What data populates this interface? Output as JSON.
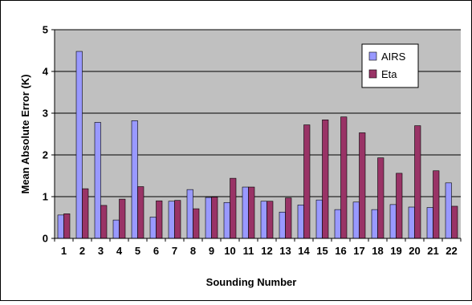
{
  "chart_data": {
    "type": "bar",
    "title": "",
    "xlabel": "Sounding Number",
    "ylabel": "Mean Absolute Error (K)",
    "ylim": [
      0,
      5
    ],
    "yticks": [
      "0",
      "1",
      "2",
      "3",
      "4",
      "5"
    ],
    "grid": true,
    "legend_position": "top-right",
    "categories": [
      "1",
      "2",
      "3",
      "4",
      "5",
      "6",
      "7",
      "8",
      "9",
      "10",
      "11",
      "12",
      "13",
      "14",
      "15",
      "16",
      "17",
      "18",
      "19",
      "20",
      "21",
      "22"
    ],
    "series": [
      {
        "name": "AIRS",
        "color": "#9999ff",
        "values": [
          0.56,
          4.48,
          2.78,
          0.44,
          2.82,
          0.51,
          0.89,
          1.17,
          0.98,
          0.86,
          1.23,
          0.89,
          0.63,
          0.8,
          0.92,
          0.69,
          0.87,
          0.69,
          0.81,
          0.75,
          0.74,
          1.33
        ]
      },
      {
        "name": "Eta",
        "color": "#993366",
        "values": [
          0.59,
          1.19,
          0.79,
          0.94,
          1.24,
          0.9,
          0.91,
          0.71,
          0.99,
          1.44,
          1.23,
          0.89,
          0.97,
          2.72,
          2.84,
          2.91,
          2.53,
          1.93,
          1.56,
          2.7,
          1.62,
          0.77
        ]
      }
    ],
    "plot_background": "#c0c0c0",
    "bar_outline": "#000000"
  }
}
